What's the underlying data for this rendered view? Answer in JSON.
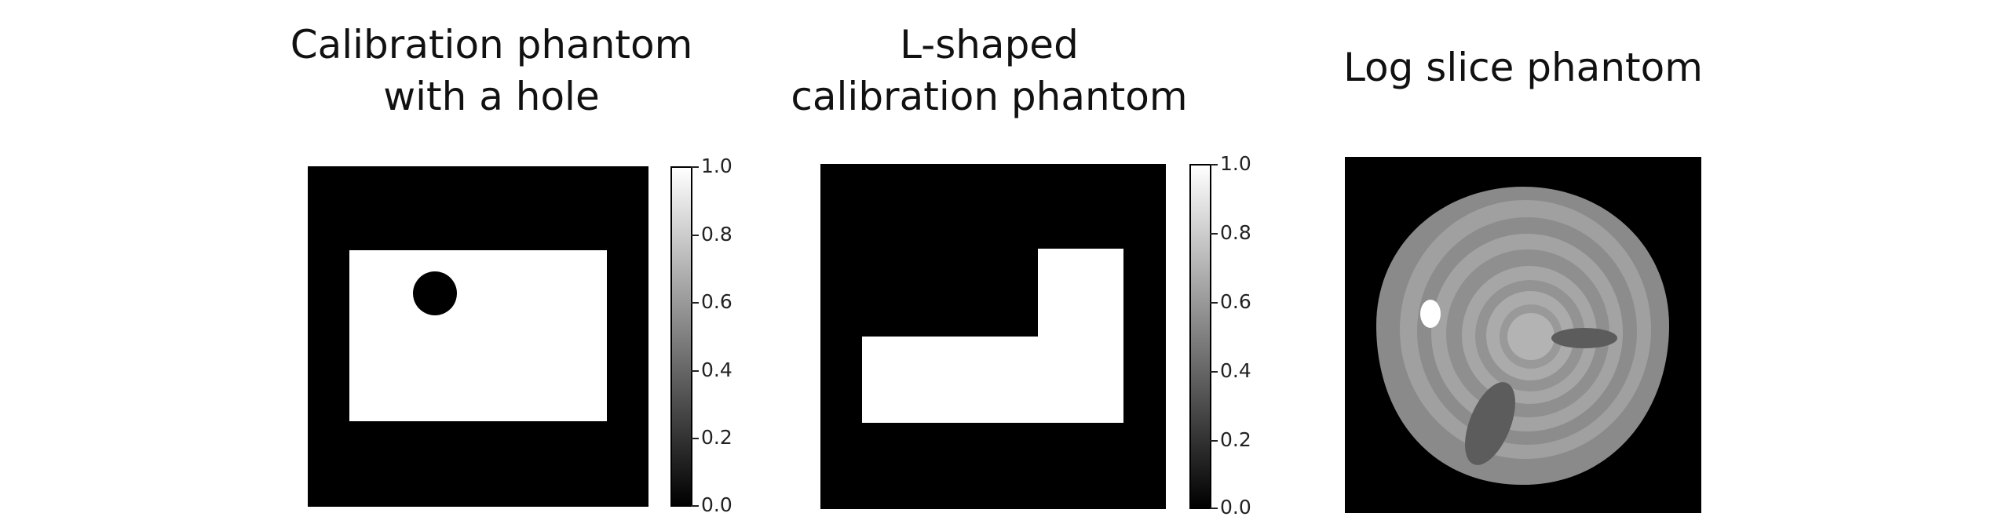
{
  "panels": [
    {
      "title_lines": [
        "Calibration phantom",
        "with a hole"
      ]
    },
    {
      "title_lines": [
        "L-shaped",
        "calibration phantom"
      ]
    },
    {
      "title_lines": [
        "Log slice phantom"
      ]
    }
  ],
  "colorbar": {
    "ticks": [
      "1.0",
      "0.8",
      "0.6",
      "0.4",
      "0.2",
      "0.0"
    ]
  },
  "colors": {
    "background": "#000000",
    "foreground": "#ffffff"
  }
}
